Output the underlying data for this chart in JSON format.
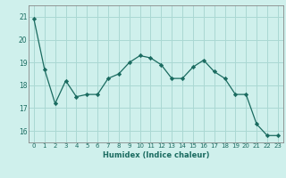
{
  "x": [
    0,
    1,
    2,
    3,
    4,
    5,
    6,
    7,
    8,
    9,
    10,
    11,
    12,
    13,
    14,
    15,
    16,
    17,
    18,
    19,
    20,
    21,
    22,
    23
  ],
  "y": [
    20.9,
    18.7,
    17.2,
    18.2,
    17.5,
    17.6,
    17.6,
    18.3,
    18.5,
    19.0,
    19.3,
    19.2,
    18.9,
    18.3,
    18.3,
    18.8,
    19.1,
    18.6,
    18.3,
    17.6,
    17.6,
    16.3,
    15.8,
    15.8
  ],
  "title": "",
  "xlabel": "Humidex (Indice chaleur)",
  "ylabel": "",
  "ylim": [
    15.5,
    21.5
  ],
  "xlim": [
    -0.5,
    23.5
  ],
  "bg_color": "#cff0ec",
  "line_color": "#1a6b60",
  "grid_color": "#aad8d3",
  "yticks": [
    16,
    17,
    18,
    19,
    20,
    21
  ],
  "xticks": [
    0,
    1,
    2,
    3,
    4,
    5,
    6,
    7,
    8,
    9,
    10,
    11,
    12,
    13,
    14,
    15,
    16,
    17,
    18,
    19,
    20,
    21,
    22,
    23
  ]
}
